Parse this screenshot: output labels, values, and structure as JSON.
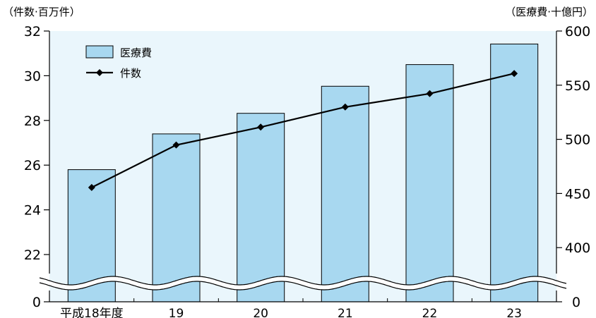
{
  "chart_data": {
    "type": "bar",
    "y_unit_left": "（件数·百万件）",
    "y_unit_right": "（医療費·十億円）",
    "categories": [
      "平成18年度",
      "19",
      "20",
      "21",
      "22",
      "23"
    ],
    "series": [
      {
        "name": "医療費",
        "type": "bar",
        "axis": "right",
        "values": [
          472,
          505,
          524,
          549,
          569,
          588
        ]
      },
      {
        "name": "件数",
        "type": "line",
        "axis": "left",
        "values": [
          25.0,
          26.9,
          27.7,
          28.6,
          29.2,
          30.1
        ]
      }
    ],
    "left_axis": {
      "ticks": [
        22,
        24,
        26,
        28,
        30,
        32
      ],
      "baseline_label": "0",
      "ylim": [
        0,
        32
      ],
      "axis_break": true
    },
    "right_axis": {
      "ticks": [
        400,
        450,
        500,
        550,
        600
      ],
      "baseline_label": "0",
      "ylim": [
        0,
        600
      ],
      "axis_break": true
    },
    "legend": {
      "placement": "top-left"
    },
    "grid": false,
    "colors": {
      "bar_fill": "#a8d8f0",
      "plot_background": "#eaf6fc",
      "line": "#000000"
    }
  }
}
